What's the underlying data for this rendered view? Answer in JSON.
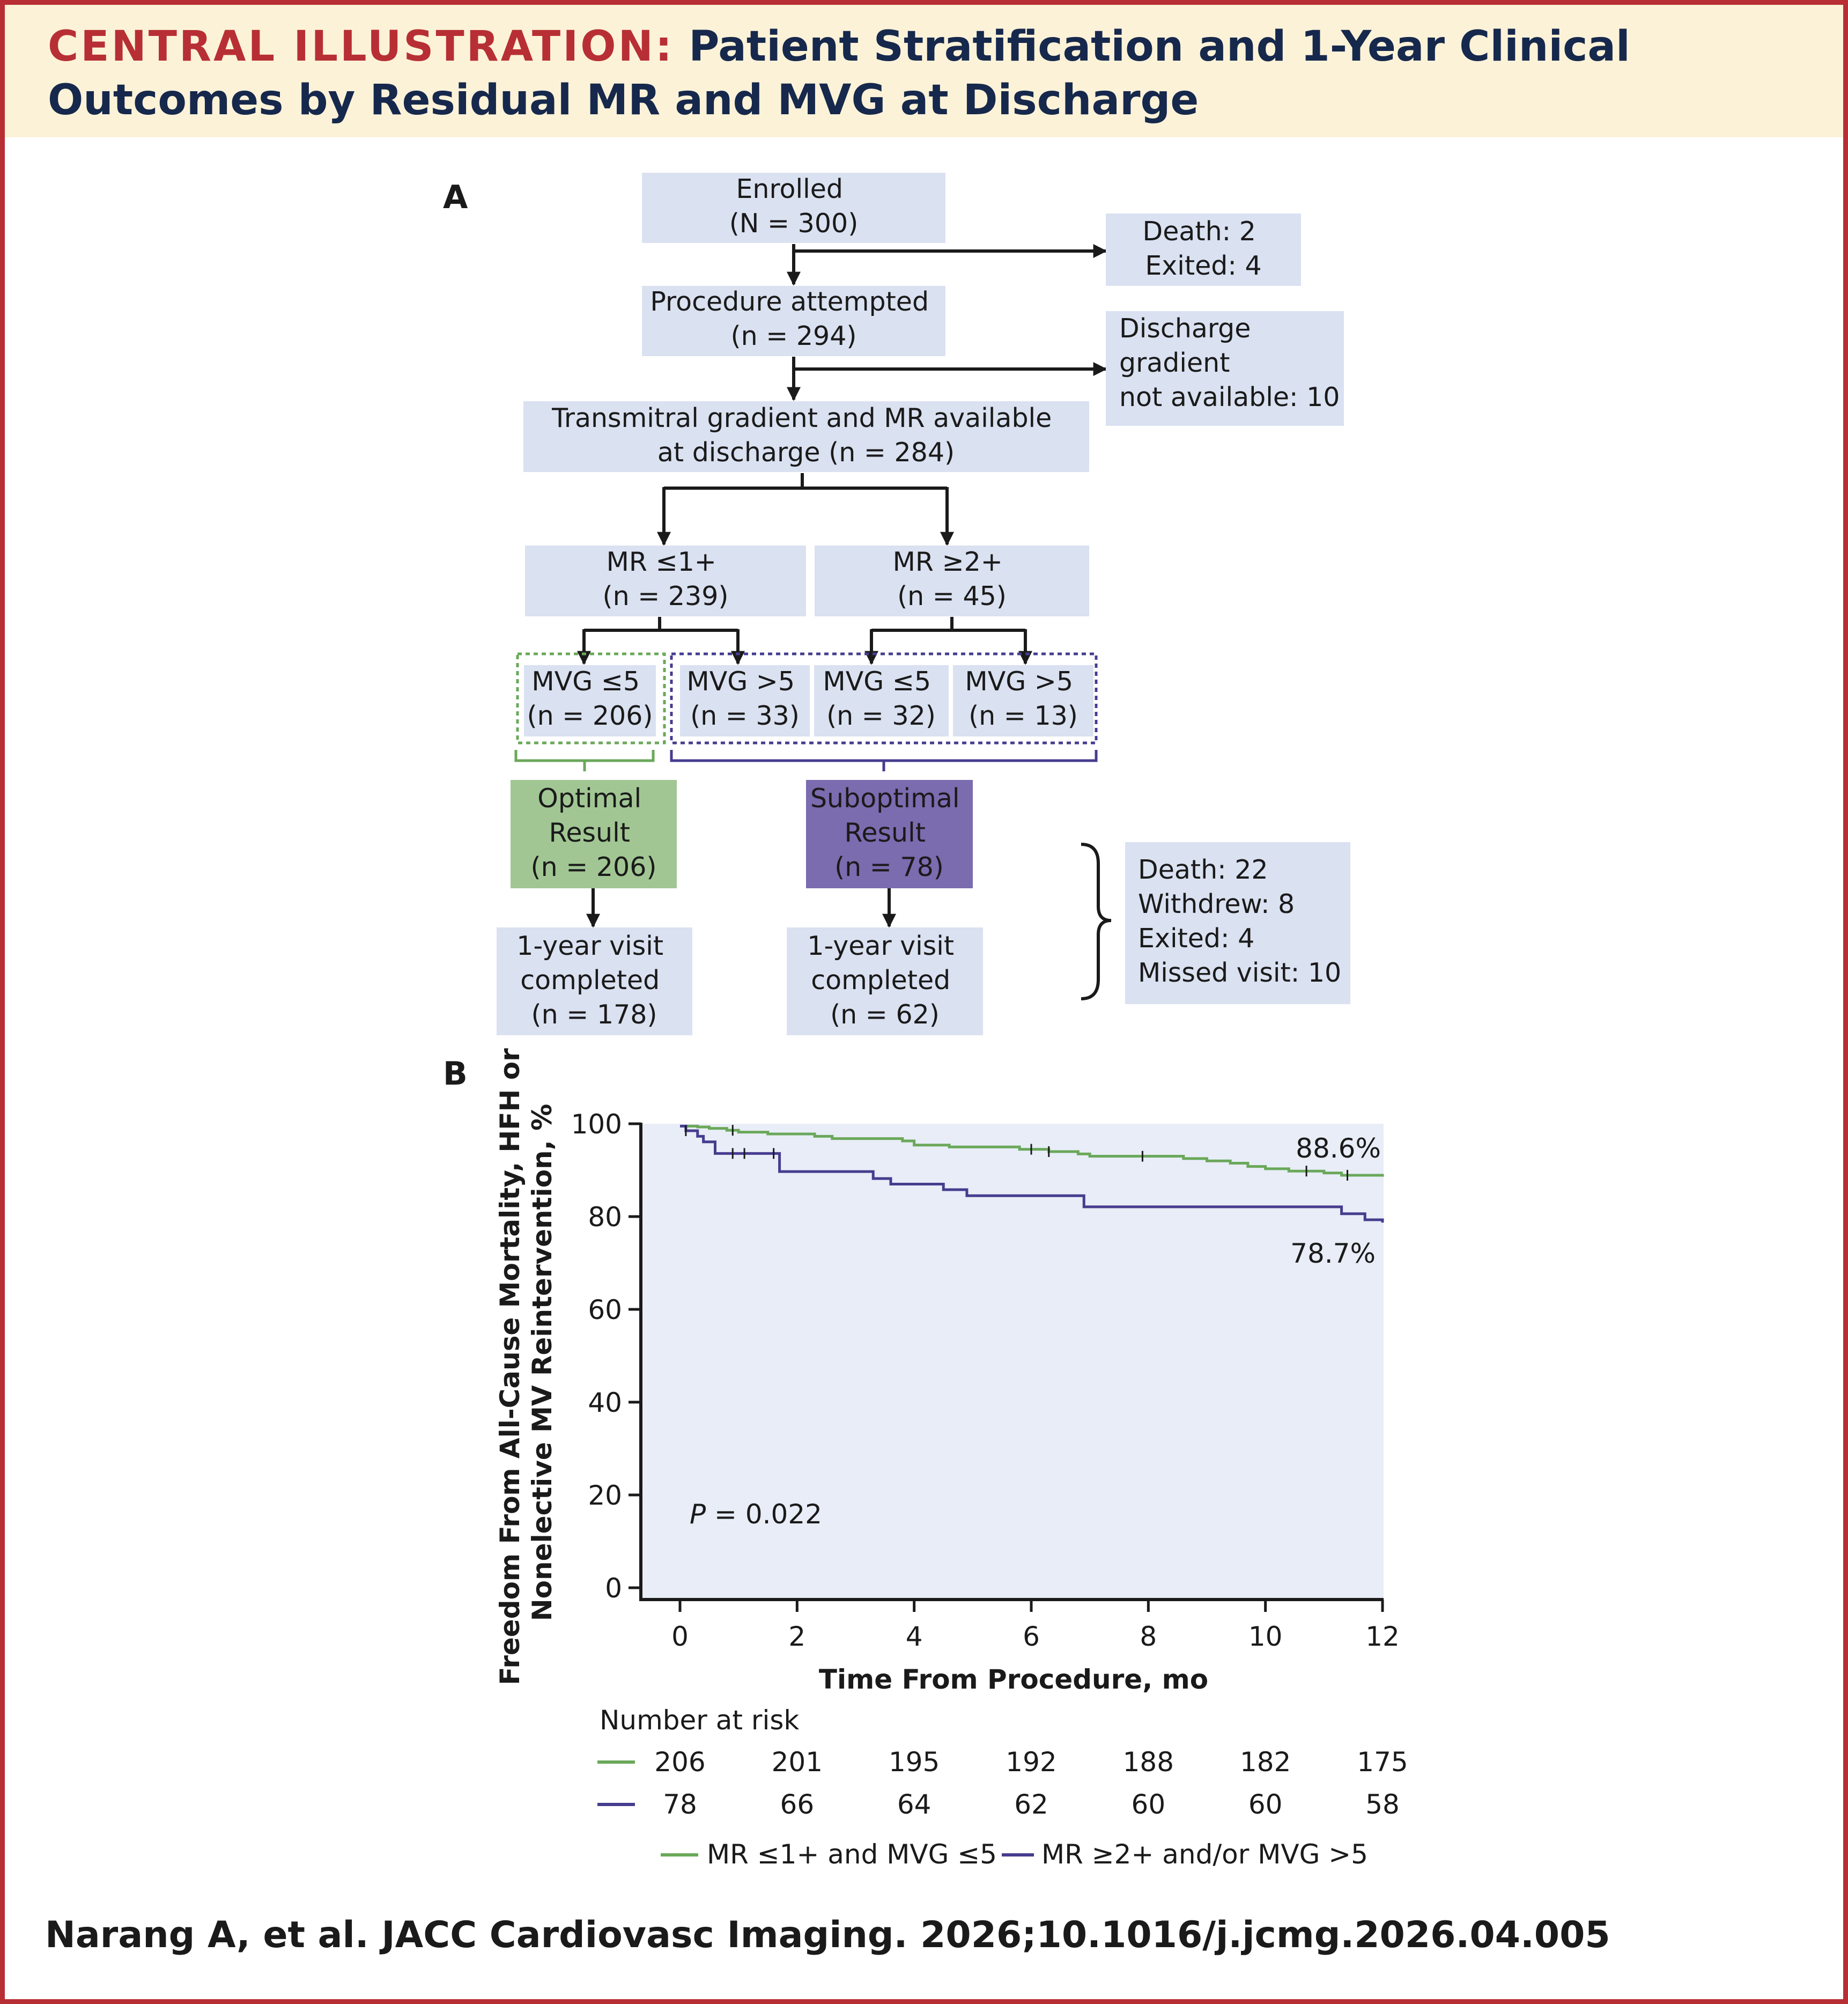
{
  "header": {
    "label": "CENTRAL ILLUSTRATION:",
    "title_line1": "Patient Stratification and 1-Year Clinical",
    "title_line2": "Outcomes by Residual MR and MVG at Discharge"
  },
  "colors": {
    "border": "#b72f34",
    "header_bg": "#fcf2d8",
    "header_text": "#16284c",
    "box_fill": "#dae1f1",
    "optimal": "#a1c693",
    "suboptimal": "#7b6baf",
    "green_line": "#6aa85a",
    "purple_line": "#463d8f",
    "plot_bg": "#e8edf7"
  },
  "panel_a": {
    "letter": "A",
    "enrolled": [
      "Enrolled",
      "(N = 300)"
    ],
    "excluded1": [
      "Death: 2",
      "Exited: 4"
    ],
    "procedure": [
      "Procedure attempted",
      "(n = 294)"
    ],
    "excluded2": [
      "Discharge",
      "gradient",
      "not available: 10"
    ],
    "available": [
      "Transmitral gradient and MR available",
      "at discharge (n = 284)"
    ],
    "mr_low": [
      "MR ≤1+",
      "(n = 239)"
    ],
    "mr_high": [
      "MR ≥2+",
      "(n = 45)"
    ],
    "mvg1": [
      "MVG ≤5",
      "(n = 206)"
    ],
    "mvg2": [
      "MVG >5",
      "(n = 33)"
    ],
    "mvg3": [
      "MVG ≤5",
      "(n = 32)"
    ],
    "mvg4": [
      "MVG >5",
      "(n = 13)"
    ],
    "optimal": [
      "Optimal",
      "Result",
      "(n = 206)"
    ],
    "suboptimal": [
      "Suboptimal",
      "Result",
      "(n = 78)"
    ],
    "visit1": [
      "1-year visit",
      "completed",
      "(n = 178)"
    ],
    "visit2": [
      "1-year visit",
      "completed",
      "(n = 62)"
    ],
    "lost": [
      "Death: 22",
      "Withdrew: 8",
      "Exited: 4",
      "Missed visit: 10"
    ]
  },
  "panel_b": {
    "letter": "B",
    "p_label": "P",
    "p_value": " = 0.022",
    "number_at_risk_title": "Number at risk",
    "legend": [
      "MR ≤1+ and MVG ≤5",
      "MR ≥2+ and/or MVG >5"
    ]
  },
  "chart_data": {
    "type": "line",
    "title": "",
    "xlabel": "Time From Procedure, mo",
    "ylabel_lines": [
      "Freedom From All-Cause Mortality, HFH or",
      "Nonelective MV Reintervention, %"
    ],
    "xlim": [
      0,
      12
    ],
    "ylim": [
      0,
      100
    ],
    "xticks": [
      0,
      2,
      4,
      6,
      8,
      10,
      12
    ],
    "yticks": [
      0,
      20,
      40,
      60,
      80,
      100
    ],
    "grid": false,
    "series": [
      {
        "name": "MR ≤1+ and MVG ≤5",
        "color": "#6aa85a",
        "end_label": "88.6%",
        "x": [
          0,
          0.3,
          0.5,
          0.8,
          1.0,
          1.5,
          2.3,
          2.6,
          3.8,
          4.0,
          4.6,
          5.8,
          6.3,
          6.8,
          7.0,
          8.6,
          9.0,
          9.4,
          9.7,
          10.0,
          10.4,
          11.0,
          11.3,
          12.0
        ],
        "y": [
          99.5,
          99.3,
          99.0,
          98.6,
          98.2,
          97.8,
          97.3,
          96.8,
          96.3,
          95.4,
          95.0,
          94.5,
          94.0,
          93.5,
          93.0,
          92.5,
          92.0,
          91.5,
          90.8,
          90.3,
          89.8,
          89.4,
          88.9,
          88.6
        ],
        "censor_x": [
          0.9,
          6.0,
          6.3,
          7.9,
          10.7,
          11.4
        ]
      },
      {
        "name": "MR ≥2+ and/or MVG >5",
        "color": "#463d8f",
        "end_label": "78.7%",
        "x": [
          0,
          0.1,
          0.3,
          0.4,
          0.6,
          1.7,
          3.3,
          3.6,
          4.5,
          4.9,
          6.9,
          11.3,
          11.7,
          12.0
        ],
        "y": [
          99.5,
          98.5,
          97.3,
          96.1,
          93.6,
          89.7,
          88.2,
          87.0,
          85.8,
          84.5,
          82.1,
          80.6,
          79.3,
          78.7
        ],
        "censor_x": [
          0.1,
          0.9,
          1.1,
          1.6
        ]
      }
    ],
    "risk_table": {
      "times": [
        0,
        2,
        4,
        6,
        8,
        10,
        12
      ],
      "rows": [
        {
          "color": "#6aa85a",
          "values": [
            206,
            201,
            195,
            192,
            188,
            182,
            175
          ]
        },
        {
          "color": "#463d8f",
          "values": [
            78,
            66,
            64,
            62,
            60,
            60,
            58
          ]
        }
      ]
    }
  },
  "citation": "Narang A, et al. JACC Cardiovasc Imaging. 2026;10.1016/j.jcmg.2026.04.005"
}
